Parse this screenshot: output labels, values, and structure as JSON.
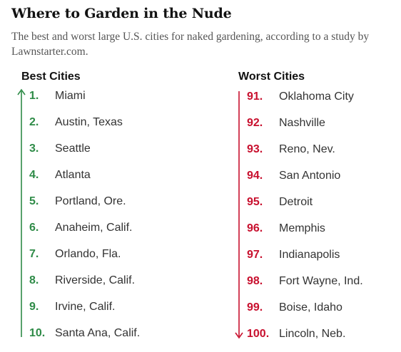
{
  "title": "Where to Garden in the Nude",
  "subtitle": "The best and worst large U.S. cities for naked gardening, according to a study by Lawnstarter.com.",
  "colors": {
    "best": "#2e8b47",
    "worst": "#c8102e"
  },
  "chart_data": {
    "type": "table",
    "columns": [
      {
        "heading": "Best Cities",
        "rows": [
          {
            "rank": "1.",
            "city": "Miami"
          },
          {
            "rank": "2.",
            "city": "Austin, Texas"
          },
          {
            "rank": "3.",
            "city": "Seattle"
          },
          {
            "rank": "4.",
            "city": "Atlanta"
          },
          {
            "rank": "5.",
            "city": "Portland, Ore."
          },
          {
            "rank": "6.",
            "city": "Anaheim, Calif."
          },
          {
            "rank": "7.",
            "city": "Orlando, Fla."
          },
          {
            "rank": "8.",
            "city": "Riverside, Calif."
          },
          {
            "rank": "9.",
            "city": "Irvine, Calif."
          },
          {
            "rank": "10.",
            "city": "Santa Ana, Calif."
          }
        ]
      },
      {
        "heading": "Worst Cities",
        "rows": [
          {
            "rank": "91.",
            "city": "Oklahoma City"
          },
          {
            "rank": "92.",
            "city": "Nashville"
          },
          {
            "rank": "93.",
            "city": "Reno, Nev."
          },
          {
            "rank": "94.",
            "city": "San Antonio"
          },
          {
            "rank": "95.",
            "city": "Detroit"
          },
          {
            "rank": "96.",
            "city": "Memphis"
          },
          {
            "rank": "97.",
            "city": "Indianapolis"
          },
          {
            "rank": "98.",
            "city": "Fort Wayne, Ind."
          },
          {
            "rank": "99.",
            "city": "Boise, Idaho"
          },
          {
            "rank": "100.",
            "city": "Lincoln, Neb."
          }
        ]
      }
    ]
  }
}
